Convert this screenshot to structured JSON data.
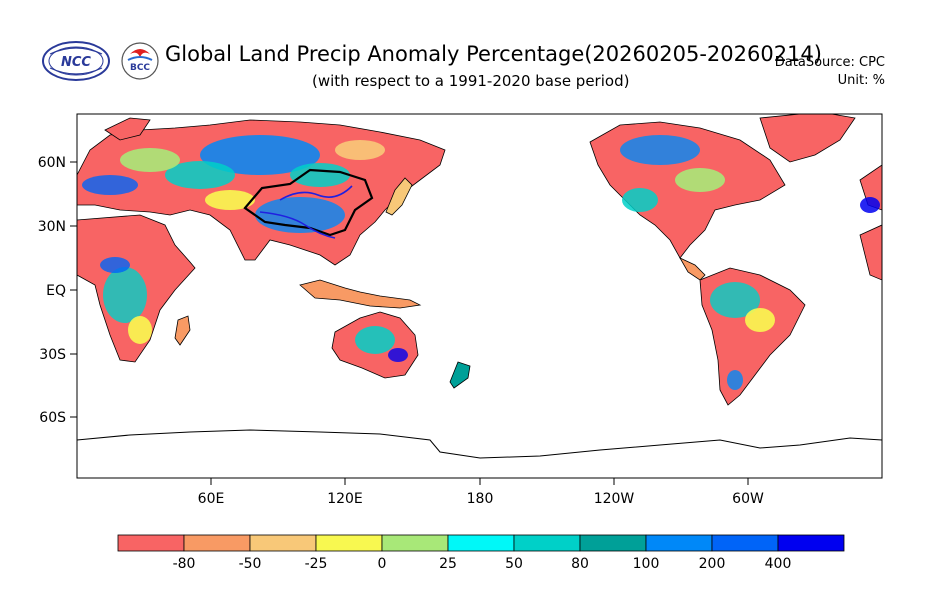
{
  "logos": {
    "ncc": "NCC",
    "bcc": "BCC"
  },
  "title": "Global Land Precip Anomaly Percentage(20260205-20260214)",
  "subtitle": "(with respect to a 1991-2020 base period)",
  "datasource": "DataSource:  CPC",
  "unit": "Unit:  %",
  "axes": {
    "lat_labels": [
      "60N",
      "30N",
      "EQ",
      "30S",
      "60S"
    ],
    "lon_labels": [
      "60E",
      "120E",
      "180",
      "120W",
      "60W"
    ]
  },
  "legend": {
    "colors": [
      "#f86464",
      "#f89a64",
      "#f8c878",
      "#f8f850",
      "#a8e878",
      "#00f8f8",
      "#00d0c8",
      "#00a098",
      "#0088f8",
      "#0064f8",
      "#0000f0"
    ],
    "labels": [
      "-80",
      "-50",
      "-25",
      "0",
      "25",
      "50",
      "80",
      "100",
      "200",
      "400"
    ]
  },
  "colors": {
    "ocean": "#ffffff",
    "coast": "#000000",
    "region_border": "#000000",
    "river": "#2020e0"
  }
}
